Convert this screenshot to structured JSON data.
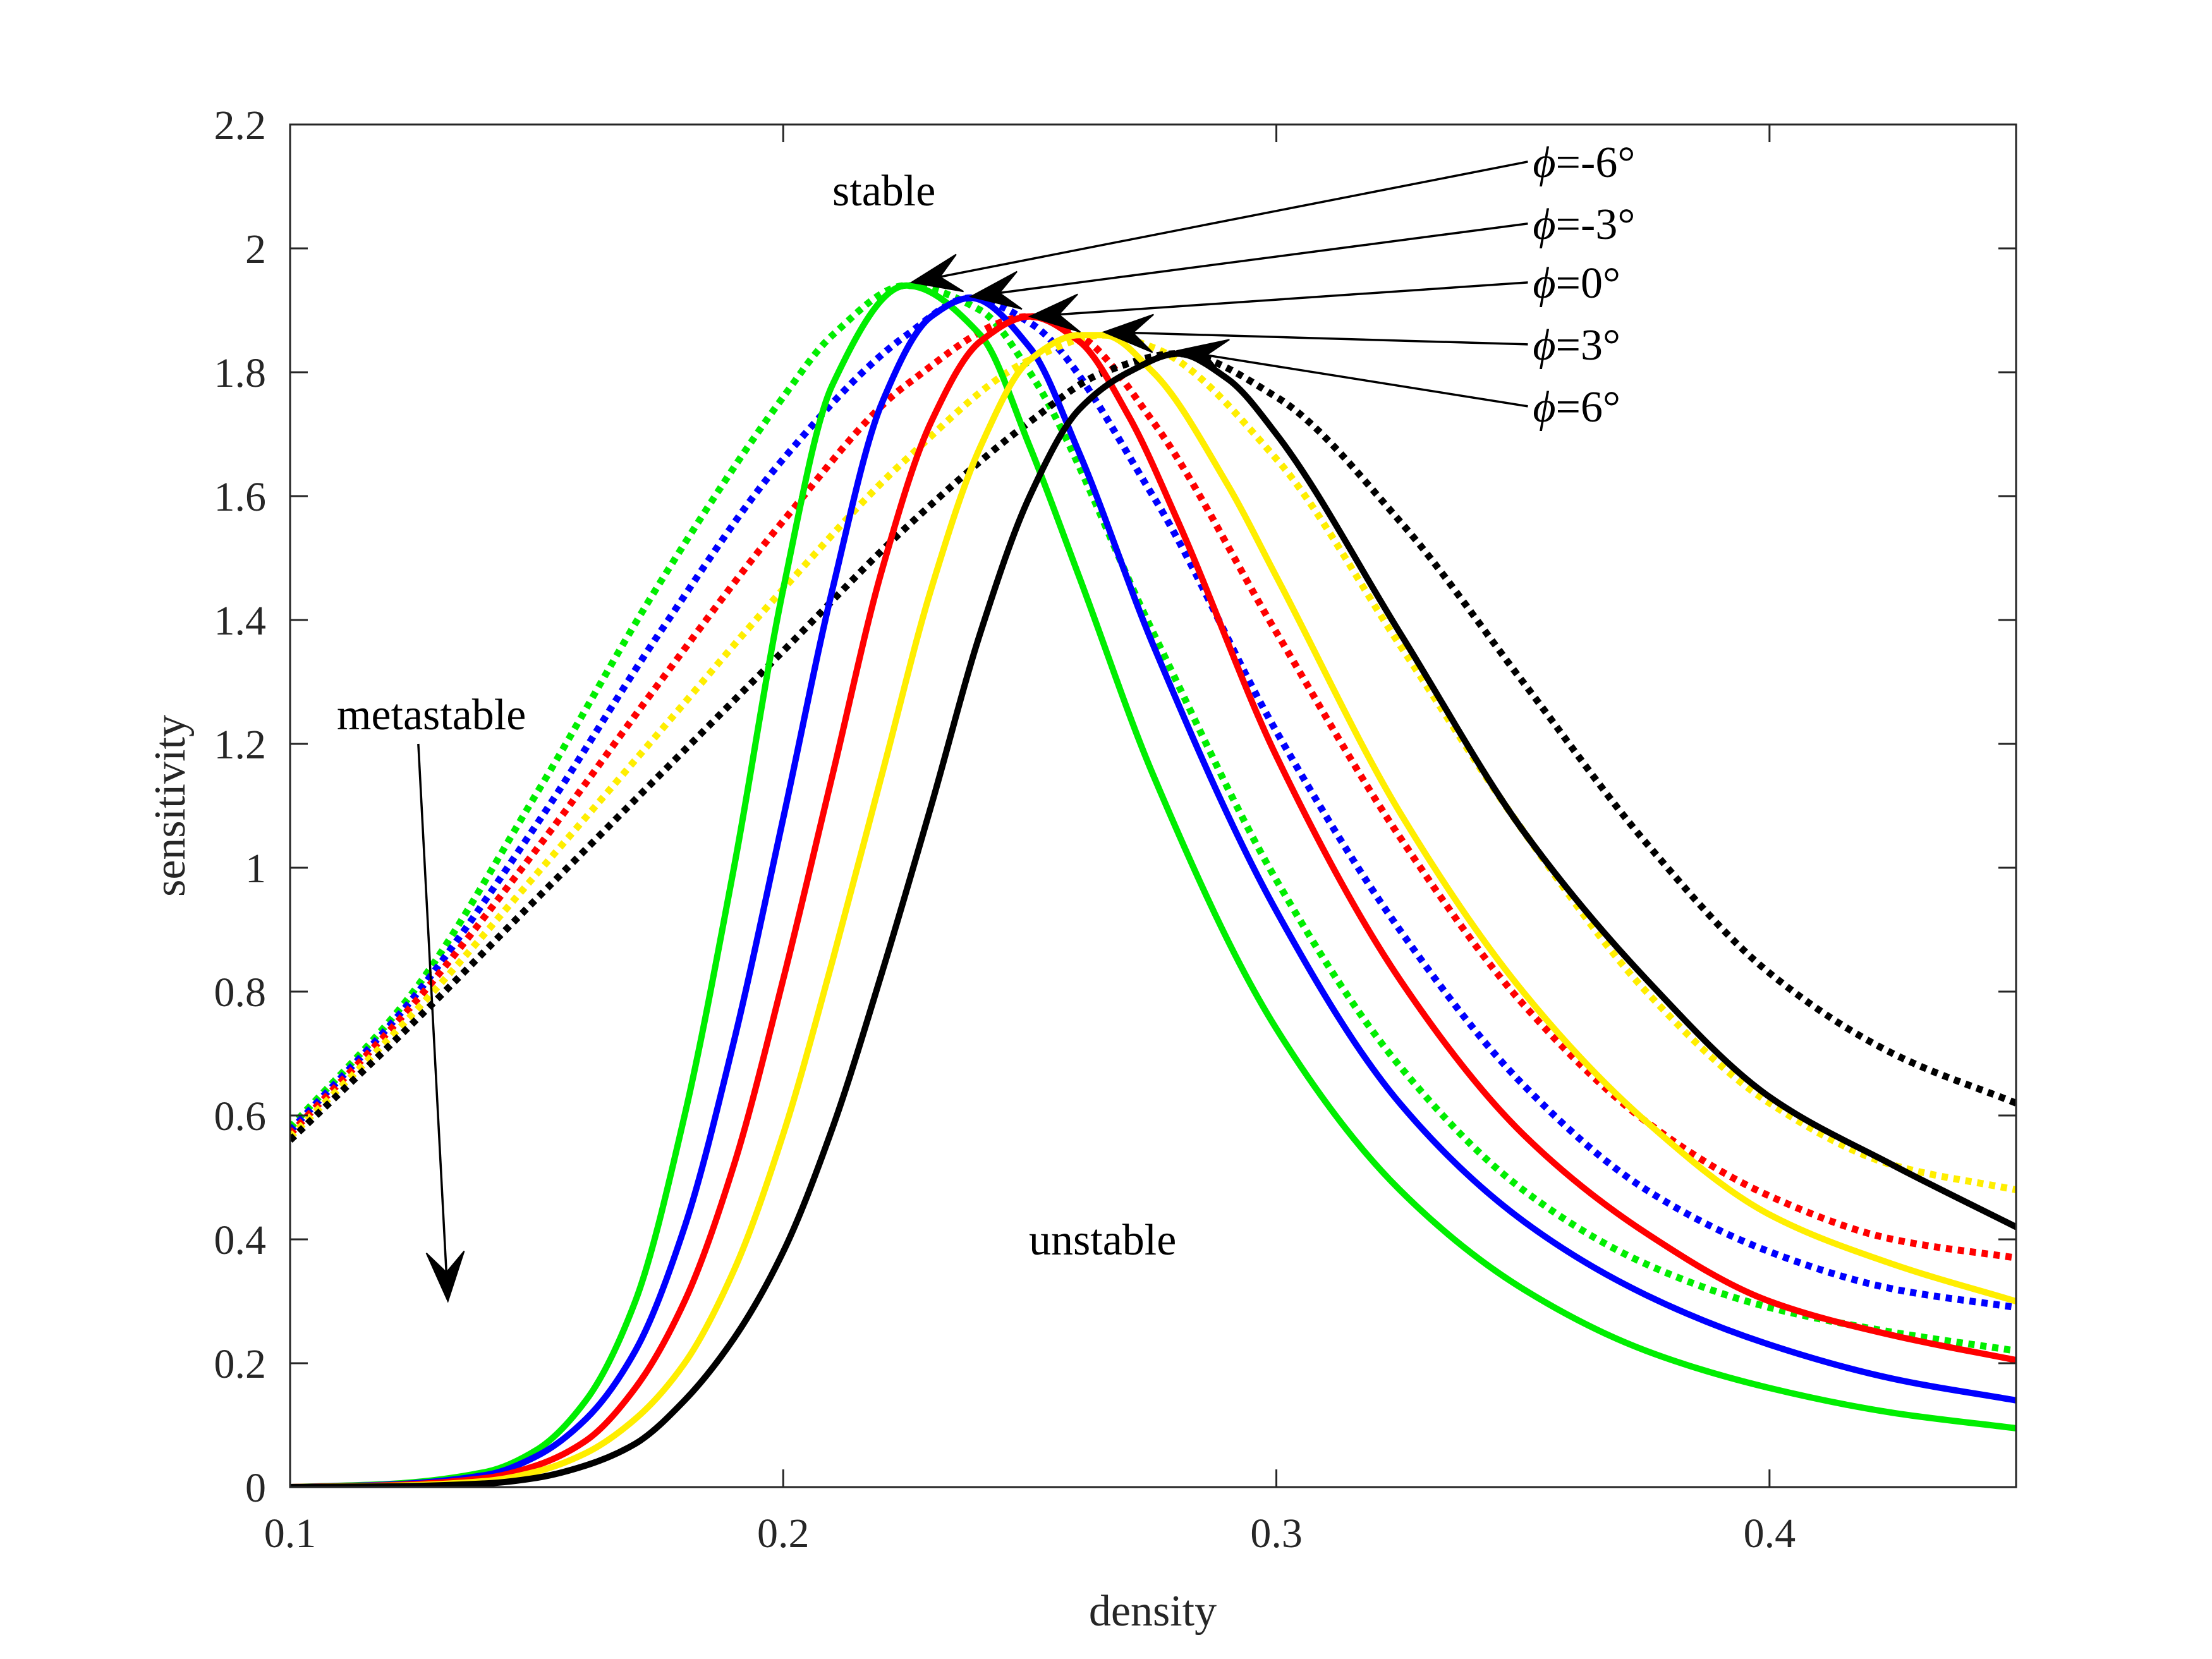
{
  "chart_data": {
    "type": "line",
    "title": "",
    "xlabel": "density",
    "ylabel": "sensitivity",
    "xlim": [
      0.1,
      0.45
    ],
    "ylim": [
      0,
      2.2
    ],
    "xticks": [
      0.1,
      0.2,
      0.3,
      0.4
    ],
    "xtick_labels": [
      "0.1",
      "0.2",
      "0.3",
      "0.4"
    ],
    "yticks": [
      0,
      0.2,
      0.4,
      0.6,
      0.8,
      1,
      1.2,
      1.4,
      1.6,
      1.8,
      2,
      2.2
    ],
    "ytick_labels": [
      "0",
      "0.2",
      "0.4",
      "0.6",
      "0.8",
      "1",
      "1.2",
      "1.4",
      "1.6",
      "1.8",
      "2",
      "2.2"
    ],
    "grid": false,
    "box": true,
    "region_labels": {
      "stable": "stable",
      "metastable": "metastable",
      "unstable": "unstable"
    },
    "callouts": [
      {
        "symbol": "ϕ",
        "text": "=-6°",
        "color": "#00ee00"
      },
      {
        "symbol": "ϕ",
        "text": "=-3°",
        "color": "#0000ff"
      },
      {
        "symbol": "ϕ",
        "text": "=0°",
        "color": "#ff0000"
      },
      {
        "symbol": "ϕ",
        "text": "=3°",
        "color": "#ffee00"
      },
      {
        "symbol": "ϕ",
        "text": "=6°",
        "color": "#000000"
      }
    ],
    "series": [
      {
        "style": "solid",
        "color": "#00ee00",
        "x": [
          0.1,
          0.12,
          0.14,
          0.15,
          0.16,
          0.17,
          0.18,
          0.19,
          0.2,
          0.21,
          0.225,
          0.24,
          0.25,
          0.26,
          0.275,
          0.3,
          0.325,
          0.35,
          0.375,
          0.4,
          0.425,
          0.45
        ],
        "y": [
          0.0,
          0.005,
          0.025,
          0.06,
          0.14,
          0.3,
          0.6,
          1.0,
          1.45,
          1.78,
          1.94,
          1.86,
          1.68,
          1.47,
          1.15,
          0.74,
          0.48,
          0.32,
          0.22,
          0.16,
          0.12,
          0.095
        ]
      },
      {
        "style": "solid",
        "color": "#0000ff",
        "x": [
          0.1,
          0.12,
          0.14,
          0.15,
          0.16,
          0.17,
          0.18,
          0.19,
          0.2,
          0.21,
          0.22,
          0.23,
          0.238,
          0.25,
          0.26,
          0.275,
          0.3,
          0.325,
          0.35,
          0.375,
          0.4,
          0.425,
          0.45
        ],
        "y": [
          0.0,
          0.004,
          0.02,
          0.05,
          0.11,
          0.22,
          0.42,
          0.72,
          1.08,
          1.45,
          1.75,
          1.89,
          1.92,
          1.84,
          1.67,
          1.36,
          0.93,
          0.62,
          0.43,
          0.31,
          0.23,
          0.175,
          0.14
        ]
      },
      {
        "style": "solid",
        "color": "#ff0000",
        "x": [
          0.1,
          0.12,
          0.14,
          0.15,
          0.16,
          0.17,
          0.18,
          0.19,
          0.2,
          0.21,
          0.22,
          0.23,
          0.24,
          0.25,
          0.26,
          0.27,
          0.28,
          0.3,
          0.325,
          0.35,
          0.375,
          0.4,
          0.425,
          0.45
        ],
        "y": [
          0.0,
          0.003,
          0.015,
          0.035,
          0.075,
          0.16,
          0.3,
          0.52,
          0.82,
          1.15,
          1.48,
          1.72,
          1.85,
          1.89,
          1.85,
          1.73,
          1.56,
          1.18,
          0.82,
          0.57,
          0.41,
          0.3,
          0.245,
          0.205
        ]
      },
      {
        "style": "solid",
        "color": "#ffee00",
        "x": [
          0.1,
          0.12,
          0.14,
          0.15,
          0.16,
          0.17,
          0.18,
          0.19,
          0.2,
          0.21,
          0.22,
          0.23,
          0.24,
          0.25,
          0.26,
          0.265,
          0.275,
          0.29,
          0.3,
          0.325,
          0.35,
          0.375,
          0.4,
          0.425,
          0.45
        ],
        "y": [
          0.0,
          0.002,
          0.01,
          0.025,
          0.055,
          0.11,
          0.2,
          0.35,
          0.57,
          0.85,
          1.15,
          1.45,
          1.68,
          1.82,
          1.86,
          1.86,
          1.8,
          1.62,
          1.47,
          1.09,
          0.8,
          0.59,
          0.44,
          0.36,
          0.3
        ]
      },
      {
        "style": "solid",
        "color": "#000000",
        "x": [
          0.1,
          0.12,
          0.14,
          0.15,
          0.16,
          0.17,
          0.18,
          0.19,
          0.2,
          0.21,
          0.22,
          0.23,
          0.24,
          0.25,
          0.26,
          0.27,
          0.28,
          0.29,
          0.3,
          0.325,
          0.35,
          0.375,
          0.4,
          0.425,
          0.45
        ],
        "y": [
          0.0,
          0.001,
          0.006,
          0.015,
          0.035,
          0.07,
          0.14,
          0.24,
          0.38,
          0.58,
          0.83,
          1.1,
          1.38,
          1.6,
          1.74,
          1.8,
          1.83,
          1.79,
          1.7,
          1.38,
          1.06,
          0.82,
          0.63,
          0.52,
          0.42
        ]
      },
      {
        "style": "dotted",
        "color": "#00ee00",
        "x": [
          0.1,
          0.125,
          0.15,
          0.175,
          0.2,
          0.21,
          0.225,
          0.24,
          0.25,
          0.275,
          0.3,
          0.325,
          0.35,
          0.375,
          0.4,
          0.425,
          0.45
        ],
        "y": [
          0.58,
          0.8,
          1.12,
          1.46,
          1.76,
          1.86,
          1.94,
          1.9,
          1.8,
          1.38,
          0.98,
          0.68,
          0.48,
          0.36,
          0.29,
          0.25,
          0.22
        ]
      },
      {
        "style": "dotted",
        "color": "#0000ff",
        "x": [
          0.1,
          0.125,
          0.15,
          0.175,
          0.2,
          0.225,
          0.238,
          0.25,
          0.275,
          0.3,
          0.325,
          0.35,
          0.375,
          0.4,
          0.425,
          0.45
        ],
        "y": [
          0.575,
          0.79,
          1.07,
          1.38,
          1.66,
          1.86,
          1.92,
          1.88,
          1.6,
          1.22,
          0.9,
          0.65,
          0.48,
          0.38,
          0.32,
          0.29
        ]
      },
      {
        "style": "dotted",
        "color": "#ff0000",
        "x": [
          0.1,
          0.125,
          0.15,
          0.175,
          0.2,
          0.225,
          0.25,
          0.26,
          0.275,
          0.3,
          0.325,
          0.35,
          0.375,
          0.4,
          0.425,
          0.45
        ],
        "y": [
          0.57,
          0.78,
          1.03,
          1.3,
          1.56,
          1.78,
          1.89,
          1.86,
          1.72,
          1.38,
          1.05,
          0.78,
          0.59,
          0.47,
          0.4,
          0.37
        ]
      },
      {
        "style": "dotted",
        "color": "#ffee00",
        "x": [
          0.1,
          0.125,
          0.15,
          0.175,
          0.2,
          0.225,
          0.25,
          0.265,
          0.275,
          0.3,
          0.325,
          0.35,
          0.375,
          0.4,
          0.425,
          0.45
        ],
        "y": [
          0.565,
          0.765,
          0.99,
          1.22,
          1.45,
          1.66,
          1.82,
          1.86,
          1.84,
          1.66,
          1.36,
          1.06,
          0.8,
          0.62,
          0.52,
          0.48
        ]
      },
      {
        "style": "dotted",
        "color": "#000000",
        "x": [
          0.1,
          0.125,
          0.15,
          0.175,
          0.2,
          0.225,
          0.25,
          0.265,
          0.28,
          0.3,
          0.325,
          0.35,
          0.375,
          0.4,
          0.425,
          0.45
        ],
        "y": [
          0.56,
          0.75,
          0.95,
          1.15,
          1.35,
          1.55,
          1.72,
          1.8,
          1.83,
          1.76,
          1.56,
          1.3,
          1.04,
          0.83,
          0.7,
          0.62
        ]
      }
    ],
    "arrows": [
      {
        "from": [
          0.351,
          2.14
        ],
        "to": [
          0.226,
          1.945
        ]
      },
      {
        "from": [
          0.351,
          2.04
        ],
        "to": [
          0.238,
          1.922
        ]
      },
      {
        "from": [
          0.351,
          1.945
        ],
        "to": [
          0.25,
          1.89
        ]
      },
      {
        "from": [
          0.351,
          1.845
        ],
        "to": [
          0.265,
          1.865
        ]
      },
      {
        "from": [
          0.351,
          1.745
        ],
        "to": [
          0.28,
          1.835
        ]
      },
      {
        "from": [
          0.126,
          1.2
        ],
        "to": [
          0.132,
          0.3
        ]
      }
    ]
  }
}
